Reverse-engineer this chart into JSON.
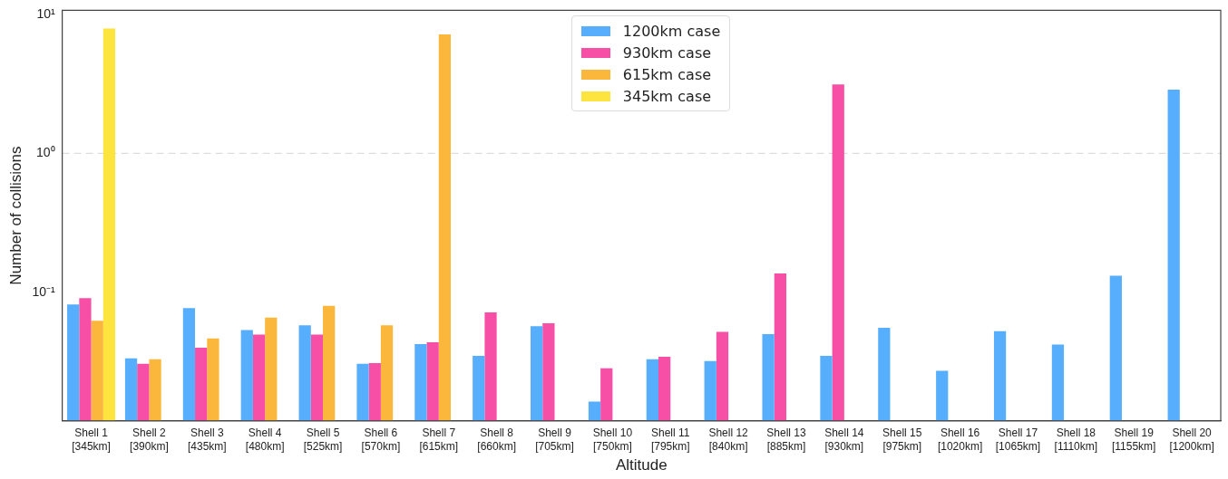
{
  "chart_data": {
    "type": "bar",
    "xlabel": "Altitude",
    "ylabel": "Number of collisions",
    "categories": [
      "Shell 1\n[345km]",
      "Shell 2\n[390km]",
      "Shell 3\n[435km]",
      "Shell 4\n[480km]",
      "Shell 5\n[525km]",
      "Shell 6\n[570km]",
      "Shell 7\n[615km]",
      "Shell 8\n[660km]",
      "Shell 9\n[705km]",
      "Shell 10\n[750km]",
      "Shell 11\n[795km]",
      "Shell 12\n[840km]",
      "Shell 13\n[885km]",
      "Shell 14\n[930km]",
      "Shell 15\n[975km]",
      "Shell 16\n[1020km]",
      "Shell 17\n[1065km]",
      "Shell 18\n[1110km]",
      "Shell 19\n[1155km]",
      "Shell 20\n[1200km]"
    ],
    "series": [
      {
        "name": "1200km case",
        "color": "#56aefc",
        "values": [
          0.082,
          0.0335,
          0.077,
          0.0535,
          0.058,
          0.0306,
          0.0424,
          0.035,
          0.057,
          0.0164,
          0.033,
          0.032,
          0.05,
          0.035,
          0.0557,
          0.0273,
          0.0526,
          0.0421,
          0.132,
          2.87
        ]
      },
      {
        "name": "930km case",
        "color": "#f74fa6",
        "values": [
          0.091,
          0.0306,
          0.04,
          0.0498,
          0.0498,
          0.031,
          0.0437,
          0.0717,
          0.06,
          0.0284,
          0.0344,
          0.052,
          0.137,
          3.14,
          null,
          null,
          null,
          null,
          null,
          null
        ]
      },
      {
        "name": "615km case",
        "color": "#fbb73c",
        "values": [
          0.0625,
          0.033,
          0.0466,
          0.0658,
          0.08,
          0.058,
          7.17,
          null,
          null,
          null,
          null,
          null,
          null,
          null,
          null,
          null,
          null,
          null,
          null,
          null
        ]
      },
      {
        "name": "345km case",
        "color": "#fde43f",
        "values": [
          7.9,
          null,
          null,
          null,
          null,
          null,
          null,
          null,
          null,
          null,
          null,
          null,
          null,
          null,
          null,
          null,
          null,
          null,
          null,
          null
        ]
      }
    ],
    "log": "y",
    "ylim": [
      0.0119,
      10.7
    ],
    "yticks": [
      {
        "value": 0.1,
        "label": "10⁻¹"
      },
      {
        "value": 1,
        "label": "10⁰"
      },
      {
        "value": 10,
        "label": "10¹"
      }
    ],
    "ref_lines": [
      {
        "axis": "y",
        "value": 1,
        "color": "#dddddd",
        "line_style": "dashed"
      }
    ],
    "legend": "top"
  }
}
